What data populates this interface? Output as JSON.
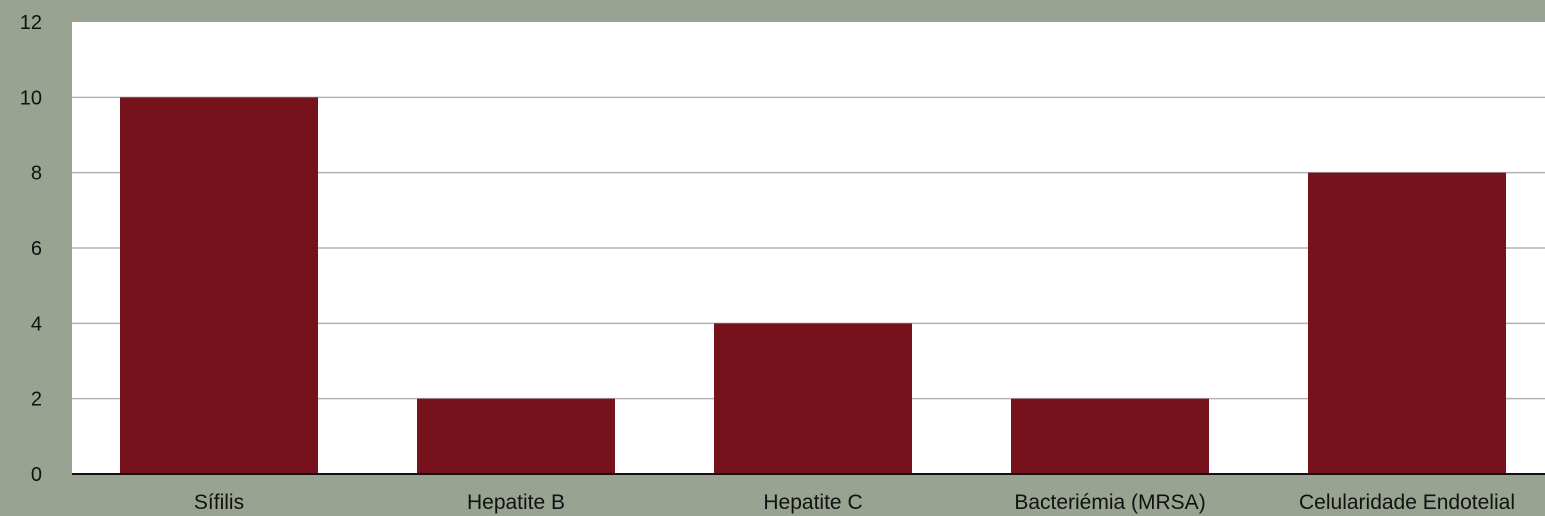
{
  "chart_data": {
    "type": "bar",
    "title": "",
    "xlabel": "",
    "ylabel": "",
    "categories": [
      "Sífilis",
      "Hepatite B",
      "Hepatite C",
      "Bacteriémia (MRSA)",
      "Celularidade Endotelial"
    ],
    "values": [
      10,
      2,
      4,
      2,
      8
    ],
    "ylim": [
      0,
      12
    ],
    "yticks": [
      "0",
      "2",
      "4",
      "6",
      "8",
      "10",
      "12"
    ],
    "grid": true,
    "legend": "none",
    "colors": {
      "background": "#98a392",
      "plot_area": "#ffffff",
      "bar": "#75121c",
      "gridline": "#b3b3b3",
      "axis": "#111111"
    }
  }
}
